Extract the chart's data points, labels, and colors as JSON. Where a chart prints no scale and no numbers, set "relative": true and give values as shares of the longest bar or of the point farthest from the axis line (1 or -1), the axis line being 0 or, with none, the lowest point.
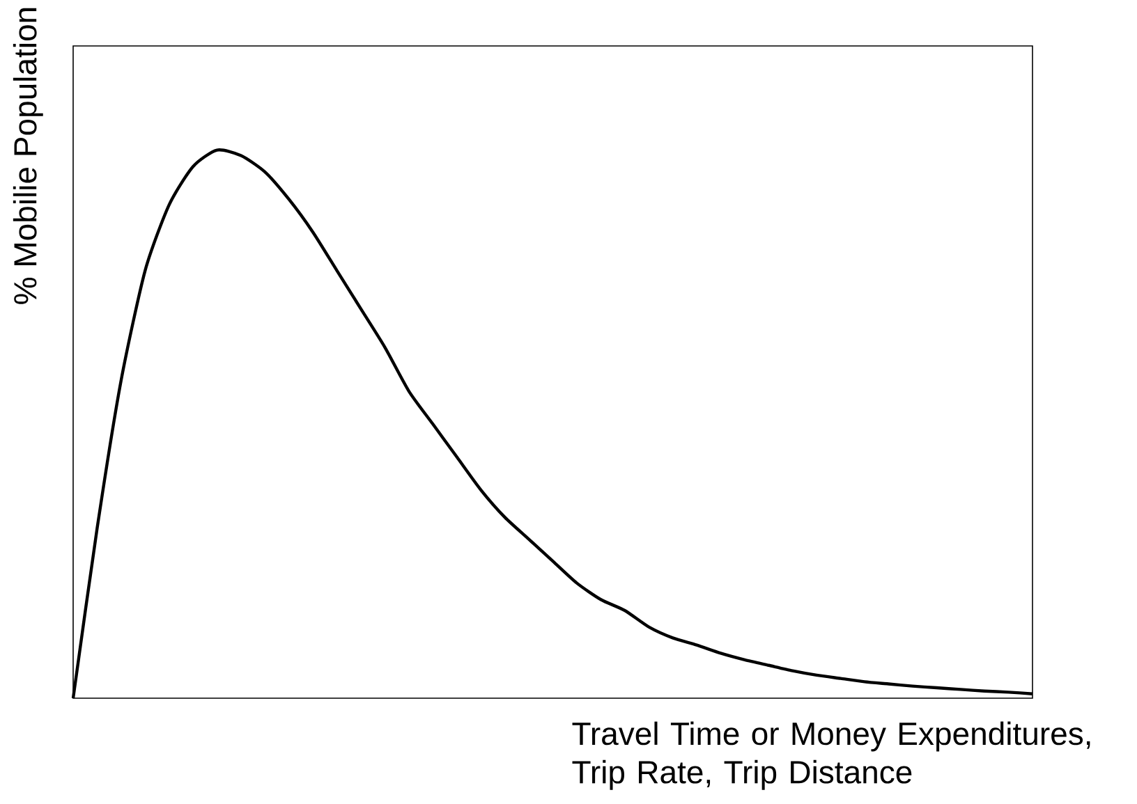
{
  "chart_data": {
    "type": "line",
    "relative": true,
    "ylabel": "% Mobilie Population",
    "xlabel": "Travel Time or Money Expenditures, Trip Rate, Trip Distance",
    "categories": [
      null,
      null,
      null,
      null,
      null,
      null,
      null,
      null,
      null,
      null,
      null,
      null,
      null,
      null,
      null,
      null,
      null,
      null,
      null,
      null,
      null,
      null,
      null,
      null,
      null,
      null,
      null,
      null,
      null,
      null,
      null,
      null,
      null,
      null,
      null,
      null,
      null,
      null,
      null,
      null,
      null
    ],
    "series": [
      {
        "color": "#000000",
        "values": [
          0,
          0.31,
          0.58,
          0.78,
          0.9,
          0.97,
          1.0,
          0.99,
          0.96,
          0.91,
          0.85,
          0.78,
          0.71,
          0.64,
          0.56,
          0.5,
          0.44,
          0.38,
          0.33,
          0.29,
          0.25,
          0.21,
          0.18,
          0.16,
          0.13,
          0.11,
          0.097,
          0.082,
          0.07,
          0.06,
          0.05,
          0.042,
          0.036,
          0.03,
          0.026,
          0.022,
          0.019,
          0.016,
          0.013,
          0.011,
          0.008
        ]
      }
    ]
  }
}
